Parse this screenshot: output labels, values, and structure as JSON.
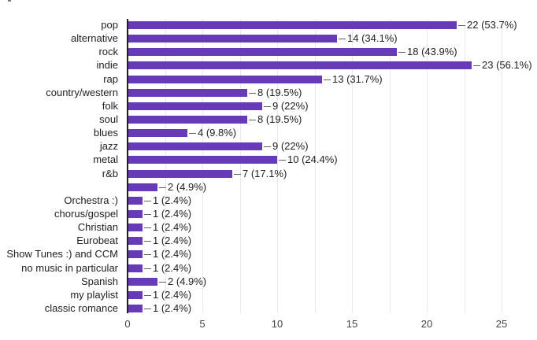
{
  "chart_data": {
    "type": "bar",
    "orientation": "horizontal",
    "title": "",
    "categories": [
      "pop",
      "alternative",
      "rock",
      "indie",
      "rap",
      "country/western",
      "folk",
      "soul",
      "blues",
      "jazz",
      "metal",
      "r&b",
      "",
      "Orchestra :)",
      "chorus/gospel",
      "Christian",
      "Eurobeat",
      "Show Tunes :) and CCM",
      "no music in particular",
      "Spanish",
      "my playlist",
      "classic romance"
    ],
    "values": [
      22,
      14,
      18,
      23,
      13,
      8,
      9,
      8,
      4,
      9,
      10,
      7,
      2,
      1,
      1,
      1,
      1,
      1,
      1,
      2,
      1,
      1
    ],
    "value_labels": [
      "22 (53.7%)",
      "14 (34.1%)",
      "18 (43.9%)",
      "23 (56.1%)",
      "13 (31.7%)",
      "8 (19.5%)",
      "9 (22%)",
      "8 (19.5%)",
      "4 (9.8%)",
      "9 (22%)",
      "10 (24.4%)",
      "7 (17.1%)",
      "2 (4.9%)",
      "1 (2.4%)",
      "1 (2.4%)",
      "1 (2.4%)",
      "1 (2.4%)",
      "1 (2.4%)",
      "1 (2.4%)",
      "2 (4.9%)",
      "1 (2.4%)",
      "1 (2.4%)"
    ],
    "xlabel": "",
    "ylabel": "",
    "xlim": [
      0,
      25
    ],
    "x_ticks": [
      "0",
      "5",
      "10",
      "15",
      "20",
      "25"
    ],
    "gridline_step": 2.5,
    "legend": "none",
    "colors": {
      "bar": "#673ab7",
      "axis_line": "#212121",
      "gridline": "#e8e8e8",
      "category_text": "#212121",
      "value_text": "#212121",
      "tick_text": "#444444",
      "connector": "#616161",
      "background": "#ffffff"
    }
  }
}
